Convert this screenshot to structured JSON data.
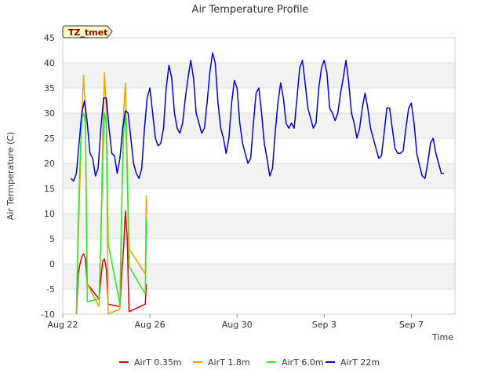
{
  "chart_data": {
    "type": "line",
    "title": "Air Temperature Profile",
    "xlabel": "Time",
    "ylabel": "Air Termperature (C)",
    "badge": "TZ_tmet",
    "xlim": [
      "2023-08-22",
      "2023-09-09"
    ],
    "ylim": [
      -10,
      45
    ],
    "y_ticks": [
      -10,
      -5,
      0,
      5,
      10,
      15,
      20,
      25,
      30,
      35,
      40,
      45
    ],
    "x_ticks": [
      {
        "date": "2023-08-22",
        "label": "Aug 22"
      },
      {
        "date": "2023-08-26",
        "label": "Aug 26"
      },
      {
        "date": "2023-08-30",
        "label": "Aug 30"
      },
      {
        "date": "2023-09-03",
        "label": "Sep 3"
      },
      {
        "date": "2023-09-07",
        "label": "Sep 7"
      }
    ],
    "grid": "horizontal bands",
    "legend_position": "bottom",
    "series": [
      {
        "name": "AirT 0.35m",
        "color": "#dd0000",
        "points": [
          [
            "2023-08-22T15:00",
            -10
          ],
          [
            "2023-08-22T17:00",
            -2
          ],
          [
            "2023-08-22T19:00",
            0
          ],
          [
            "2023-08-22T21:00",
            1.5
          ],
          [
            "2023-08-22T23:00",
            2
          ],
          [
            "2023-08-23T01:00",
            1
          ],
          [
            "2023-08-23T03:00",
            -4
          ],
          [
            "2023-08-23T16:00",
            -7
          ],
          [
            "2023-08-23T18:00",
            -3
          ],
          [
            "2023-08-23T20:00",
            0.5
          ],
          [
            "2023-08-23T22:00",
            1
          ],
          [
            "2023-08-24T00:00",
            -1
          ],
          [
            "2023-08-24T02:00",
            -8
          ],
          [
            "2023-08-24T15:00",
            -8.5
          ],
          [
            "2023-08-24T17:00",
            -2
          ],
          [
            "2023-08-24T19:00",
            3
          ],
          [
            "2023-08-24T21:00",
            10.5
          ],
          [
            "2023-08-24T23:00",
            5
          ],
          [
            "2023-08-25T01:00",
            -9.5
          ],
          [
            "2023-08-25T19:00",
            -8
          ],
          [
            "2023-08-25T20:00",
            -4
          ]
        ]
      },
      {
        "name": "AirT 1.8m",
        "color": "#f0a000",
        "points": [
          [
            "2023-08-22T15:00",
            -10
          ],
          [
            "2023-08-22T17:00",
            5
          ],
          [
            "2023-08-22T19:00",
            17
          ],
          [
            "2023-08-22T21:00",
            30
          ],
          [
            "2023-08-22T23:00",
            37.5
          ],
          [
            "2023-08-23T01:00",
            30
          ],
          [
            "2023-08-23T03:00",
            -4
          ],
          [
            "2023-08-23T16:00",
            -8.5
          ],
          [
            "2023-08-23T18:00",
            5
          ],
          [
            "2023-08-23T20:00",
            25
          ],
          [
            "2023-08-23T22:00",
            38
          ],
          [
            "2023-08-24T00:00",
            30
          ],
          [
            "2023-08-24T02:00",
            -10
          ],
          [
            "2023-08-24T15:00",
            -9
          ],
          [
            "2023-08-24T17:00",
            10
          ],
          [
            "2023-08-24T19:00",
            30
          ],
          [
            "2023-08-24T21:00",
            36
          ],
          [
            "2023-08-24T23:00",
            20
          ],
          [
            "2023-08-25T01:00",
            3
          ],
          [
            "2023-08-25T19:00",
            -2
          ],
          [
            "2023-08-25T20:00",
            13.5
          ],
          [
            "2023-08-25T20:30",
            10
          ]
        ]
      },
      {
        "name": "AirT 6.0m",
        "color": "#22ee22",
        "points": [
          [
            "2023-08-22T15:00",
            -10
          ],
          [
            "2023-08-22T17:00",
            8
          ],
          [
            "2023-08-22T19:00",
            20
          ],
          [
            "2023-08-22T21:00",
            29
          ],
          [
            "2023-08-22T23:00",
            30
          ],
          [
            "2023-08-23T01:00",
            28
          ],
          [
            "2023-08-23T03:00",
            -7.5
          ],
          [
            "2023-08-23T16:00",
            -7
          ],
          [
            "2023-08-23T18:00",
            5
          ],
          [
            "2023-08-23T20:00",
            20
          ],
          [
            "2023-08-23T22:00",
            30
          ],
          [
            "2023-08-24T00:00",
            28
          ],
          [
            "2023-08-24T02:00",
            4
          ],
          [
            "2023-08-24T15:00",
            -8
          ],
          [
            "2023-08-24T17:00",
            12
          ],
          [
            "2023-08-24T19:00",
            26
          ],
          [
            "2023-08-24T21:00",
            30
          ],
          [
            "2023-08-24T23:00",
            18
          ],
          [
            "2023-08-25T01:00",
            -0.5
          ],
          [
            "2023-08-25T19:00",
            -6
          ],
          [
            "2023-08-25T20:00",
            9
          ],
          [
            "2023-08-25T20:30",
            6
          ]
        ]
      },
      {
        "name": "AirT 22m",
        "color": "#0000dd",
        "points": [
          [
            "2023-08-22T09:00",
            17
          ],
          [
            "2023-08-22T12:00",
            16.5
          ],
          [
            "2023-08-22T15:00",
            18
          ],
          [
            "2023-08-22T18:00",
            24
          ],
          [
            "2023-08-22T21:00",
            30
          ],
          [
            "2023-08-23T00:00",
            32.5
          ],
          [
            "2023-08-23T03:00",
            28
          ],
          [
            "2023-08-23T06:00",
            22
          ],
          [
            "2023-08-23T09:00",
            21
          ],
          [
            "2023-08-23T12:00",
            17.5
          ],
          [
            "2023-08-23T15:00",
            19
          ],
          [
            "2023-08-23T18:00",
            27
          ],
          [
            "2023-08-23T21:00",
            33
          ],
          [
            "2023-08-24T00:00",
            33
          ],
          [
            "2023-08-24T03:00",
            27
          ],
          [
            "2023-08-24T06:00",
            22
          ],
          [
            "2023-08-24T09:00",
            21.5
          ],
          [
            "2023-08-24T12:00",
            18
          ],
          [
            "2023-08-24T15:00",
            21
          ],
          [
            "2023-08-24T18:00",
            27
          ],
          [
            "2023-08-24T21:00",
            30.5
          ],
          [
            "2023-08-25T00:00",
            30
          ],
          [
            "2023-08-25T03:00",
            25
          ],
          [
            "2023-08-25T06:00",
            20
          ],
          [
            "2023-08-25T09:00",
            18
          ],
          [
            "2023-08-25T12:00",
            17
          ],
          [
            "2023-08-25T15:00",
            19
          ],
          [
            "2023-08-25T18:00",
            27
          ],
          [
            "2023-08-25T21:00",
            33
          ],
          [
            "2023-08-26T00:00",
            35
          ],
          [
            "2023-08-26T03:00",
            30
          ],
          [
            "2023-08-26T06:00",
            25
          ],
          [
            "2023-08-26T09:00",
            23.5
          ],
          [
            "2023-08-26T12:00",
            24
          ],
          [
            "2023-08-26T15:00",
            27
          ],
          [
            "2023-08-26T18:00",
            35
          ],
          [
            "2023-08-26T21:00",
            39.5
          ],
          [
            "2023-08-27T00:00",
            37
          ],
          [
            "2023-08-27T03:00",
            30
          ],
          [
            "2023-08-27T06:00",
            27
          ],
          [
            "2023-08-27T09:00",
            26
          ],
          [
            "2023-08-27T12:00",
            28
          ],
          [
            "2023-08-27T15:00",
            33
          ],
          [
            "2023-08-27T18:00",
            37
          ],
          [
            "2023-08-27T21:00",
            40.5
          ],
          [
            "2023-08-28T00:00",
            37
          ],
          [
            "2023-08-28T03:00",
            30
          ],
          [
            "2023-08-28T06:00",
            28
          ],
          [
            "2023-08-28T09:00",
            26
          ],
          [
            "2023-08-28T12:00",
            27
          ],
          [
            "2023-08-28T15:00",
            32
          ],
          [
            "2023-08-28T18:00",
            38
          ],
          [
            "2023-08-28T21:00",
            42
          ],
          [
            "2023-08-29T00:00",
            40
          ],
          [
            "2023-08-29T03:00",
            32
          ],
          [
            "2023-08-29T06:00",
            27
          ],
          [
            "2023-08-29T09:00",
            25
          ],
          [
            "2023-08-29T12:00",
            22
          ],
          [
            "2023-08-29T15:00",
            25
          ],
          [
            "2023-08-29T18:00",
            32
          ],
          [
            "2023-08-29T21:00",
            36.5
          ],
          [
            "2023-08-30T00:00",
            35
          ],
          [
            "2023-08-30T03:00",
            28
          ],
          [
            "2023-08-30T06:00",
            24
          ],
          [
            "2023-08-30T09:00",
            22
          ],
          [
            "2023-08-30T12:00",
            20
          ],
          [
            "2023-08-30T15:00",
            21
          ],
          [
            "2023-08-30T18:00",
            28
          ],
          [
            "2023-08-30T21:00",
            34
          ],
          [
            "2023-08-31T00:00",
            35
          ],
          [
            "2023-08-31T03:00",
            30
          ],
          [
            "2023-08-31T06:00",
            24
          ],
          [
            "2023-08-31T09:00",
            21
          ],
          [
            "2023-08-31T12:00",
            17.5
          ],
          [
            "2023-08-31T15:00",
            19
          ],
          [
            "2023-08-31T18:00",
            26
          ],
          [
            "2023-08-31T21:00",
            32
          ],
          [
            "2023-09-01T00:00",
            36
          ],
          [
            "2023-09-01T03:00",
            33
          ],
          [
            "2023-09-01T06:00",
            28
          ],
          [
            "2023-09-01T09:00",
            27
          ],
          [
            "2023-09-01T12:00",
            28
          ],
          [
            "2023-09-01T15:00",
            27
          ],
          [
            "2023-09-01T18:00",
            33
          ],
          [
            "2023-09-01T21:00",
            39
          ],
          [
            "2023-09-02T00:00",
            40.5
          ],
          [
            "2023-09-02T03:00",
            36
          ],
          [
            "2023-09-02T06:00",
            31
          ],
          [
            "2023-09-02T09:00",
            29
          ],
          [
            "2023-09-02T12:00",
            27
          ],
          [
            "2023-09-02T15:00",
            28
          ],
          [
            "2023-09-02T18:00",
            35
          ],
          [
            "2023-09-02T21:00",
            39
          ],
          [
            "2023-09-03T00:00",
            40.5
          ],
          [
            "2023-09-03T03:00",
            38
          ],
          [
            "2023-09-03T06:00",
            31
          ],
          [
            "2023-09-03T09:00",
            30
          ],
          [
            "2023-09-03T12:00",
            28.5
          ],
          [
            "2023-09-03T15:00",
            30
          ],
          [
            "2023-09-03T18:00",
            34
          ],
          [
            "2023-09-03T21:00",
            37
          ],
          [
            "2023-09-04T00:00",
            40.5
          ],
          [
            "2023-09-04T03:00",
            36
          ],
          [
            "2023-09-04T06:00",
            30
          ],
          [
            "2023-09-04T09:00",
            28
          ],
          [
            "2023-09-04T12:00",
            25
          ],
          [
            "2023-09-04T15:00",
            27
          ],
          [
            "2023-09-04T18:00",
            31
          ],
          [
            "2023-09-04T21:00",
            34
          ],
          [
            "2023-09-05T00:00",
            31
          ],
          [
            "2023-09-05T03:00",
            27
          ],
          [
            "2023-09-05T06:00",
            25
          ],
          [
            "2023-09-05T09:00",
            23
          ],
          [
            "2023-09-05T12:00",
            21
          ],
          [
            "2023-09-05T15:00",
            21.5
          ],
          [
            "2023-09-05T18:00",
            26
          ],
          [
            "2023-09-05T21:00",
            31
          ],
          [
            "2023-09-06T00:00",
            31
          ],
          [
            "2023-09-06T03:00",
            27
          ],
          [
            "2023-09-06T06:00",
            23
          ],
          [
            "2023-09-06T09:00",
            22
          ],
          [
            "2023-09-06T12:00",
            22
          ],
          [
            "2023-09-06T15:00",
            22.5
          ],
          [
            "2023-09-06T18:00",
            27
          ],
          [
            "2023-09-06T21:00",
            31
          ],
          [
            "2023-09-07T00:00",
            32
          ],
          [
            "2023-09-07T03:00",
            28
          ],
          [
            "2023-09-07T06:00",
            22
          ],
          [
            "2023-09-07T09:00",
            19.5
          ],
          [
            "2023-09-07T12:00",
            17.5
          ],
          [
            "2023-09-07T15:00",
            17
          ],
          [
            "2023-09-07T18:00",
            20
          ],
          [
            "2023-09-07T21:00",
            24
          ],
          [
            "2023-09-08T00:00",
            25
          ],
          [
            "2023-09-08T03:00",
            22
          ],
          [
            "2023-09-08T06:00",
            20
          ],
          [
            "2023-09-08T09:00",
            18
          ],
          [
            "2023-09-08T12:00",
            18
          ]
        ]
      }
    ]
  }
}
